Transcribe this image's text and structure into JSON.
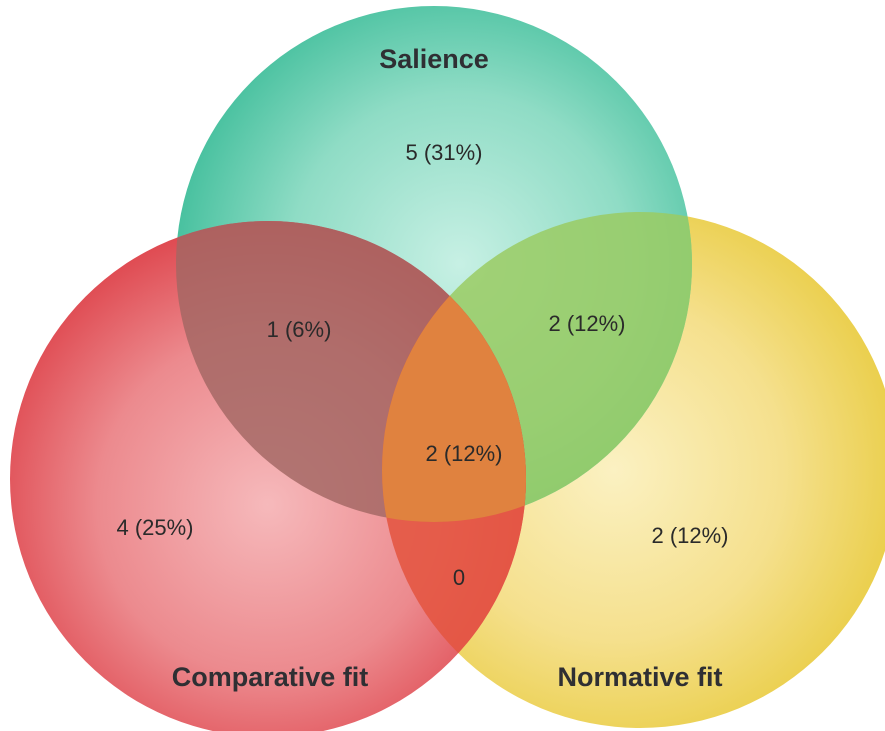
{
  "sets": [
    {
      "id": "salience",
      "label": "Salience",
      "color": "#3dbf9b"
    },
    {
      "id": "comparative",
      "label": "Comparative fit",
      "color": "#e0454c"
    },
    {
      "id": "normative",
      "label": "Normative fit",
      "color": "#ecd24e"
    }
  ],
  "regions": {
    "salience_only": "5 (31%)",
    "comparative_only": "4 (25%)",
    "normative_only": "2 (12%)",
    "salience_comparative": "1 (6%)",
    "salience_normative": "2 (12%)",
    "comparative_normative": "0",
    "all_three": "2 (12%)"
  }
}
